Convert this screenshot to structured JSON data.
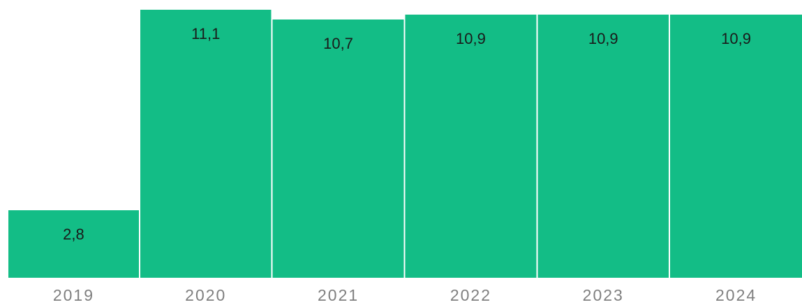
{
  "chart_data": {
    "type": "bar",
    "categories": [
      "2019",
      "2020",
      "2021",
      "2022",
      "2023",
      "2024"
    ],
    "values": [
      2.8,
      11.1,
      10.7,
      10.9,
      10.9,
      10.9
    ],
    "value_labels": [
      "2,8",
      "11,1",
      "10,7",
      "10,9",
      "10,9",
      "10,9"
    ],
    "title": "",
    "xlabel": "",
    "ylabel": "",
    "ylim": [
      0,
      11.1
    ],
    "grid": false,
    "legend": "none",
    "colors": {
      "bar": "#13bd86",
      "value_text": "#1a1a1a",
      "tick_text": "#7f7f7f"
    }
  }
}
